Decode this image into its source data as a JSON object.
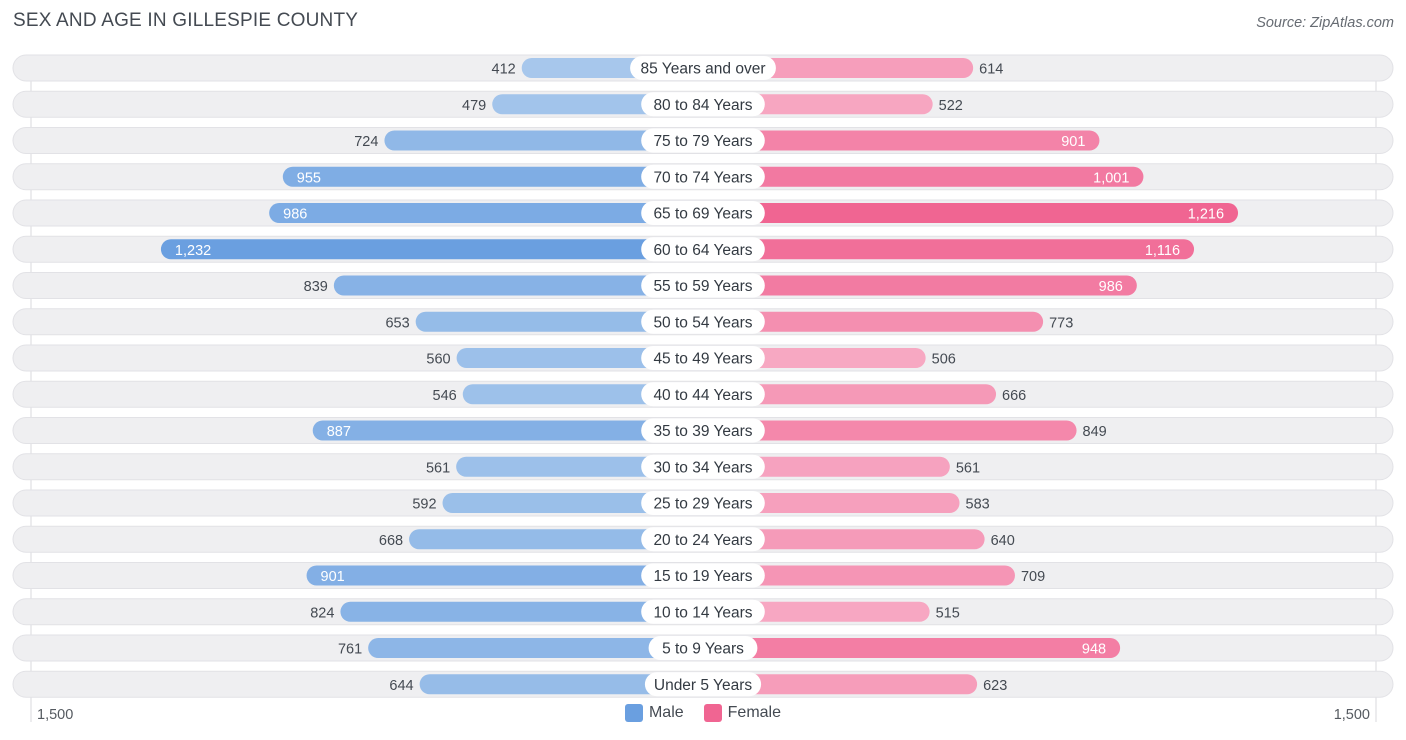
{
  "header": {
    "title": "SEX AND AGE IN GILLESPIE COUNTY",
    "source": "Source: ZipAtlas.com"
  },
  "colors": {
    "male_light": "#a8c8ec",
    "male_dark": "#6a9fe0",
    "female_light": "#f7aac4",
    "female_dark": "#f06592",
    "row_bg": "#efeff1"
  },
  "legend": {
    "male": "Male",
    "female": "Female"
  },
  "axis": {
    "left_label": "1,500",
    "right_label": "1,500"
  },
  "chart_data": {
    "type": "bar",
    "orientation": "horizontal-butterfly",
    "title": "SEX AND AGE IN GILLESPIE COUNTY",
    "xlim": [
      -1500,
      1500
    ],
    "categories": [
      "85 Years and over",
      "80 to 84 Years",
      "75 to 79 Years",
      "70 to 74 Years",
      "65 to 69 Years",
      "60 to 64 Years",
      "55 to 59 Years",
      "50 to 54 Years",
      "45 to 49 Years",
      "40 to 44 Years",
      "35 to 39 Years",
      "30 to 34 Years",
      "25 to 29 Years",
      "20 to 24 Years",
      "15 to 19 Years",
      "10 to 14 Years",
      "5 to 9 Years",
      "Under 5 Years"
    ],
    "series": [
      {
        "name": "Male",
        "values": [
          412,
          479,
          724,
          955,
          986,
          1232,
          839,
          653,
          560,
          546,
          887,
          561,
          592,
          668,
          901,
          824,
          761,
          644
        ],
        "labels": [
          "412",
          "479",
          "724",
          "955",
          "986",
          "1,232",
          "839",
          "653",
          "560",
          "546",
          "887",
          "561",
          "592",
          "668",
          "901",
          "824",
          "761",
          "644"
        ]
      },
      {
        "name": "Female",
        "values": [
          614,
          522,
          901,
          1001,
          1216,
          1116,
          986,
          773,
          506,
          666,
          849,
          561,
          583,
          640,
          709,
          515,
          948,
          623
        ],
        "labels": [
          "614",
          "522",
          "901",
          "1,001",
          "1,216",
          "1,116",
          "986",
          "773",
          "506",
          "666",
          "849",
          "561",
          "583",
          "640",
          "709",
          "515",
          "948",
          "623"
        ]
      }
    ],
    "legend_position": "bottom-center"
  }
}
